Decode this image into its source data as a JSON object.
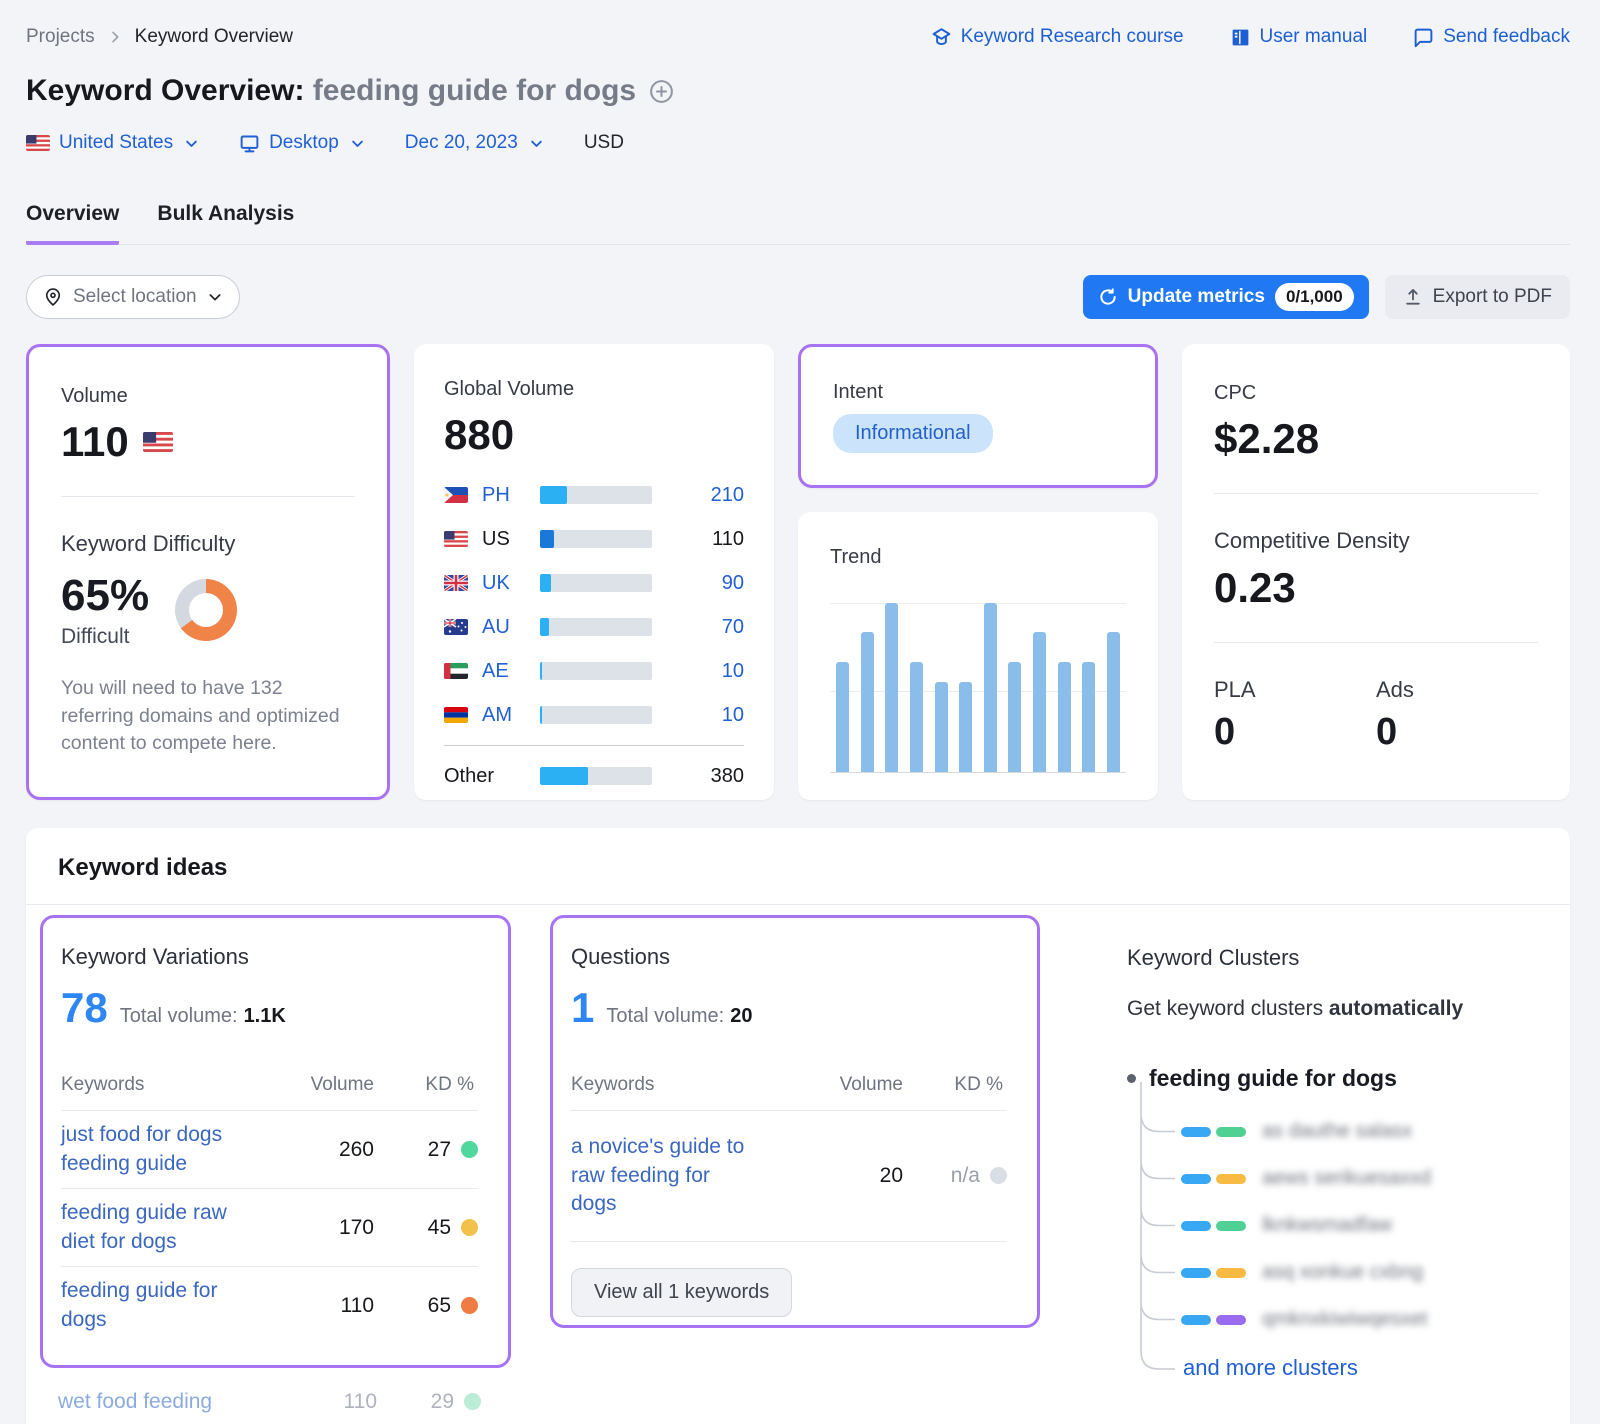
{
  "breadcrumb": {
    "root": "Projects",
    "current": "Keyword Overview"
  },
  "header_links": {
    "course": "Keyword Research course",
    "manual": "User manual",
    "feedback": "Send feedback"
  },
  "title": {
    "prefix": "Keyword Overview:",
    "keyword": "feeding guide for dogs"
  },
  "filters": {
    "country": "United States",
    "device": "Desktop",
    "date": "Dec 20, 2023",
    "currency": "USD"
  },
  "tabs": {
    "overview": "Overview",
    "bulk": "Bulk Analysis"
  },
  "toolbar": {
    "select_location": "Select location",
    "update_metrics": "Update metrics",
    "quota": "0/1,000",
    "export_pdf": "Export to PDF"
  },
  "volume_card": {
    "label": "Volume",
    "value": "110",
    "flag": "US",
    "kd_label": "Keyword Difficulty",
    "kd_value": "65%",
    "kd_percent": 65,
    "kd_color": "#f08348",
    "kd_severity": "Difficult",
    "kd_note": "You will need to have 132 referring domains and optimized content to compete here."
  },
  "global_volume": {
    "label": "Global Volume",
    "value": "880",
    "rows": [
      {
        "code": "PH",
        "value": "210",
        "pct": 24,
        "dark": false
      },
      {
        "code": "US",
        "value": "110",
        "pct": 12.5,
        "dark": true
      },
      {
        "code": "UK",
        "value": "90",
        "pct": 10,
        "dark": false
      },
      {
        "code": "AU",
        "value": "70",
        "pct": 8,
        "dark": false
      },
      {
        "code": "AE",
        "value": "10",
        "pct": 1.5,
        "dark": false
      },
      {
        "code": "AM",
        "value": "10",
        "pct": 1.5,
        "dark": false
      }
    ],
    "other": {
      "label": "Other",
      "value": "380",
      "pct": 43
    }
  },
  "intent_card": {
    "label": "Intent",
    "badge": "Informational"
  },
  "trend_card": {
    "label": "Trend"
  },
  "chart_data": {
    "type": "bar",
    "title": "Trend",
    "values_relative": [
      65,
      83,
      100,
      65,
      53,
      53,
      100,
      65,
      83,
      65,
      65,
      83
    ],
    "ylim": [
      0,
      100
    ],
    "color": "#8abde9"
  },
  "cpc_card": {
    "label": "CPC",
    "value": "$2.28",
    "cd_label": "Competitive Density",
    "cd_value": "0.23",
    "pla_label": "PLA",
    "pla_value": "0",
    "ads_label": "Ads",
    "ads_value": "0"
  },
  "ideas": {
    "title": "Keyword ideas"
  },
  "variations": {
    "title": "Keyword Variations",
    "count": "78",
    "total_label": "Total volume:",
    "total_value": "1.1K",
    "columns": {
      "keywords": "Keywords",
      "volume": "Volume",
      "kd": "KD %"
    },
    "rows": [
      {
        "keyword": "just food for dogs feeding guide",
        "volume": "260",
        "kd": "27",
        "kd_color": "#4fd79e"
      },
      {
        "keyword": "feeding guide raw diet for dogs",
        "volume": "170",
        "kd": "45",
        "kd_color": "#f2c14b"
      },
      {
        "keyword": "feeding guide for dogs",
        "volume": "110",
        "kd": "65",
        "kd_color": "#ef7b45"
      }
    ],
    "extra_row": {
      "keyword": "wet food feeding",
      "volume": "110",
      "kd": "29",
      "kd_color": "#a9e8cd"
    }
  },
  "questions": {
    "title": "Questions",
    "count": "1",
    "total_label": "Total volume:",
    "total_value": "20",
    "columns": {
      "keywords": "Keywords",
      "volume": "Volume",
      "kd": "KD %"
    },
    "rows": [
      {
        "keyword": "a novice's guide to raw feeding for dogs",
        "volume": "20",
        "kd": "n/a",
        "kd_color": "#d9dde4",
        "na": true
      }
    ],
    "view_all": "View all 1 keywords"
  },
  "clusters": {
    "title": "Keyword Clusters",
    "subtitle_regular": "Get keyword clusters ",
    "subtitle_bold": "automatically",
    "root": "feeding guide for dogs",
    "items": [
      {
        "text": "as dauthe salasx",
        "color": "#50d092"
      },
      {
        "text": "aews serikuesaxxd",
        "color": "#f7bb43"
      },
      {
        "text": "lknkwsmadfaw",
        "color": "#50d092"
      },
      {
        "text": "asq xonkue cxbng",
        "color": "#f7bb43"
      },
      {
        "text": "qmknxkiwiwqesxet",
        "color": "#9a6cf0"
      }
    ],
    "more": "and more clusters"
  }
}
